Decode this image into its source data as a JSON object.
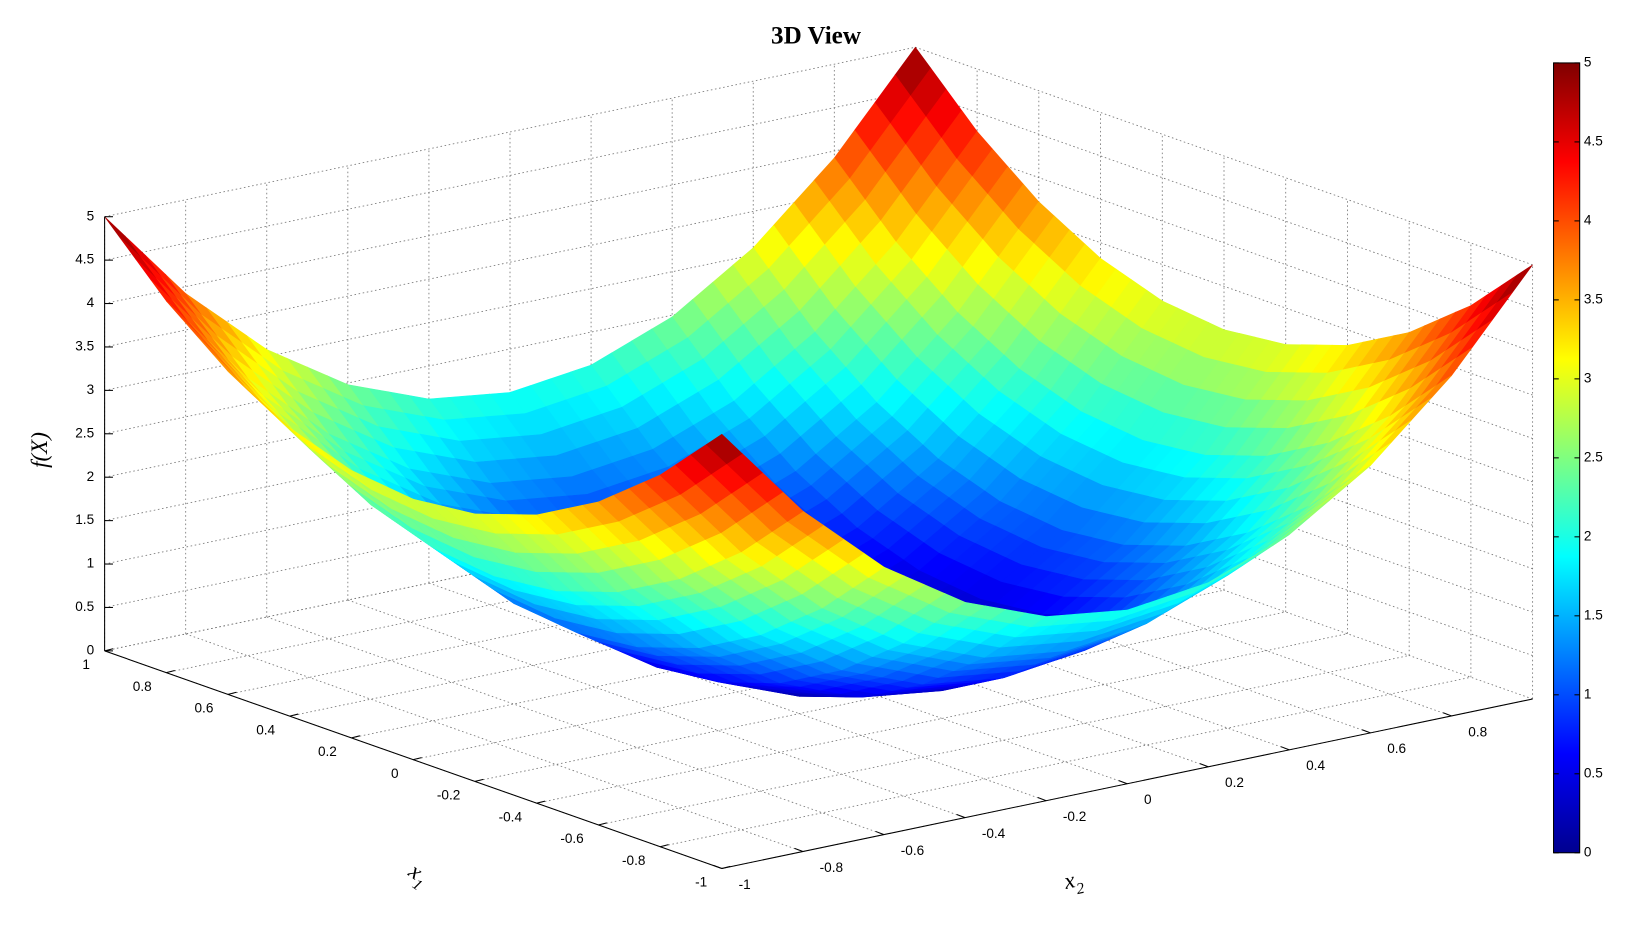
{
  "chart_data": {
    "type": "surface",
    "title": "3D View",
    "x1label": "x",
    "x1label_sub": "1",
    "x2label": "x",
    "x2label_sub": "2",
    "zlabel": "f(X)",
    "x1": [
      -1,
      -0.8,
      -0.6,
      -0.4,
      -0.2,
      0,
      0.2,
      0.4,
      0.6,
      0.8,
      1
    ],
    "x2": [
      -1,
      -0.8,
      -0.6,
      -0.4,
      -0.2,
      0,
      0.2,
      0.4,
      0.6,
      0.8,
      1
    ],
    "z": [
      [
        5,
        3.92,
        3.08,
        2.48,
        2.12,
        2,
        2.12,
        2.48,
        3.08,
        3.92,
        5
      ],
      [
        4.28,
        3.2,
        2.36,
        1.76,
        1.4,
        1.28,
        1.4,
        1.76,
        2.36,
        3.2,
        4.28
      ],
      [
        3.72,
        2.64,
        1.8,
        1.2,
        0.84,
        0.72,
        0.84,
        1.2,
        1.8,
        2.64,
        3.72
      ],
      [
        3.32,
        2.24,
        1.4,
        0.8,
        0.44,
        0.32,
        0.44,
        0.8,
        1.4,
        2.24,
        3.32
      ],
      [
        3.08,
        2,
        1.16,
        0.56,
        0.2,
        0.08,
        0.2,
        0.56,
        1.16,
        2,
        3.08
      ],
      [
        3,
        1.92,
        1.08,
        0.48,
        0.12,
        0,
        0.12,
        0.48,
        1.08,
        1.92,
        3
      ],
      [
        3.08,
        2,
        1.16,
        0.56,
        0.2,
        0.08,
        0.2,
        0.56,
        1.16,
        2,
        3.08
      ],
      [
        3.32,
        2.24,
        1.4,
        0.8,
        0.44,
        0.32,
        0.44,
        0.8,
        1.4,
        2.24,
        3.32
      ],
      [
        3.72,
        2.64,
        1.8,
        1.2,
        0.84,
        0.72,
        0.84,
        1.2,
        1.8,
        2.64,
        3.72
      ],
      [
        4.28,
        3.2,
        2.36,
        1.76,
        1.4,
        1.28,
        1.4,
        1.76,
        2.36,
        3.2,
        4.28
      ],
      [
        5,
        3.92,
        3.08,
        2.48,
        2.12,
        2,
        2.12,
        2.48,
        3.08,
        3.92,
        5
      ]
    ],
    "x1lim": [
      -1,
      1
    ],
    "x2lim": [
      -1,
      1
    ],
    "zlim": [
      0,
      5
    ],
    "x1ticks": [
      -1,
      -0.8,
      -0.6,
      -0.4,
      -0.2,
      0,
      0.2,
      0.4,
      0.6,
      0.8,
      1
    ],
    "x2ticks": [
      -1,
      -0.8,
      -0.6,
      -0.4,
      -0.2,
      0,
      0.2,
      0.4,
      0.6,
      0.8
    ],
    "zticks": [
      0,
      0.5,
      1,
      1.5,
      2,
      2.5,
      3,
      3.5,
      4,
      4.5,
      5
    ],
    "grid": true,
    "colormap": "jet",
    "colorbar": {
      "clim": [
        0,
        5
      ],
      "ticks": [
        0,
        0.5,
        1,
        1.5,
        2,
        2.5,
        3,
        3.5,
        4,
        4.5,
        5
      ]
    }
  }
}
